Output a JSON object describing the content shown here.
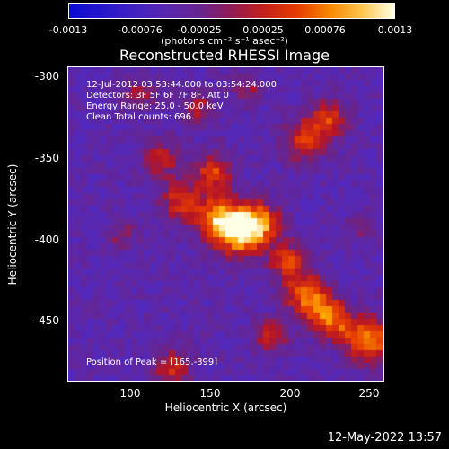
{
  "colorbar": {
    "ticks": [
      "-0.0013",
      "-0.00076",
      "-0.00025",
      "0.00025",
      "0.00076",
      "0.0013"
    ],
    "units": "(photons cm⁻² s⁻¹ asec⁻²)",
    "range": [
      -0.0013,
      0.0013
    ]
  },
  "chart_data": {
    "type": "heatmap",
    "title": "Reconstructed RHESSI Image",
    "xlabel": "Heliocentric X (arcsec)",
    "ylabel": "Heliocentric Y (arcsec)",
    "xlim": [
      62,
      253
    ],
    "ylim": [
      -490,
      -295
    ],
    "x_ticks": [
      "100",
      "150",
      "200",
      "250"
    ],
    "y_ticks": [
      "-300",
      "-350",
      "-400",
      "-450"
    ],
    "x_tick_values": [
      100,
      150,
      200,
      250
    ],
    "y_tick_values": [
      -300,
      -350,
      -400,
      -450
    ],
    "annotations": [
      "12-Jul-2012 03:53:44.000 to 03:54:24.000",
      "Detectors: 3F 5F 6F 7F 8F, Att 0",
      "Energy Range: 25.0 - 50.0 keV",
      "Clean     Total counts: 696."
    ],
    "peak_label": "Position of Peak = [165,-399]",
    "peak": [
      165,
      -399
    ]
  },
  "footer": {
    "timestamp": "12-May-2022 13:57"
  }
}
